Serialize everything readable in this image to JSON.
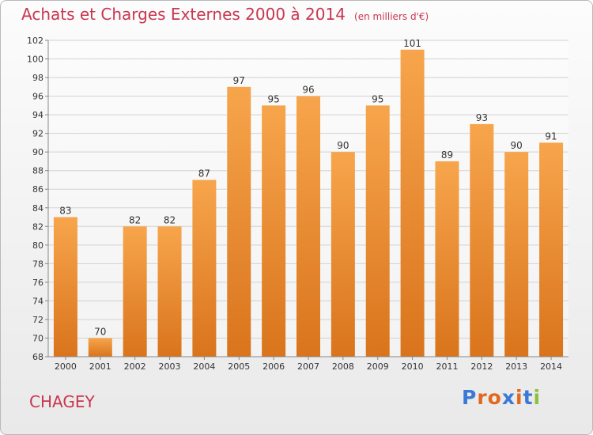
{
  "header": {
    "title": "Achats et Charges Externes 2000 à 2014",
    "subtitle": "(en milliers d'€)"
  },
  "footer": {
    "commune": "CHAGEY",
    "logo_text": "Proxiti"
  },
  "colors": {
    "title": "#c8364f",
    "bar_top": "#f7a54c",
    "bar_bottom": "#d9741c",
    "logo_letters": [
      "#3a7ad6",
      "#e2681e",
      "#e2681e",
      "#3a7ad6",
      "#e2681e",
      "#3a7ad6",
      "#8bc23a"
    ]
  },
  "chart_data": {
    "type": "bar",
    "categories": [
      "2000",
      "2001",
      "2002",
      "2003",
      "2004",
      "2005",
      "2006",
      "2007",
      "2008",
      "2009",
      "2010",
      "2011",
      "2012",
      "2013",
      "2014"
    ],
    "values": [
      83,
      70,
      82,
      82,
      87,
      97,
      95,
      96,
      90,
      95,
      101,
      89,
      93,
      90,
      91
    ],
    "ylim": [
      68,
      102
    ],
    "yticks": [
      68,
      70,
      72,
      74,
      76,
      78,
      80,
      82,
      84,
      86,
      88,
      90,
      92,
      94,
      96,
      98,
      100,
      102
    ],
    "grid": true,
    "xlabel": "",
    "ylabel": ""
  }
}
